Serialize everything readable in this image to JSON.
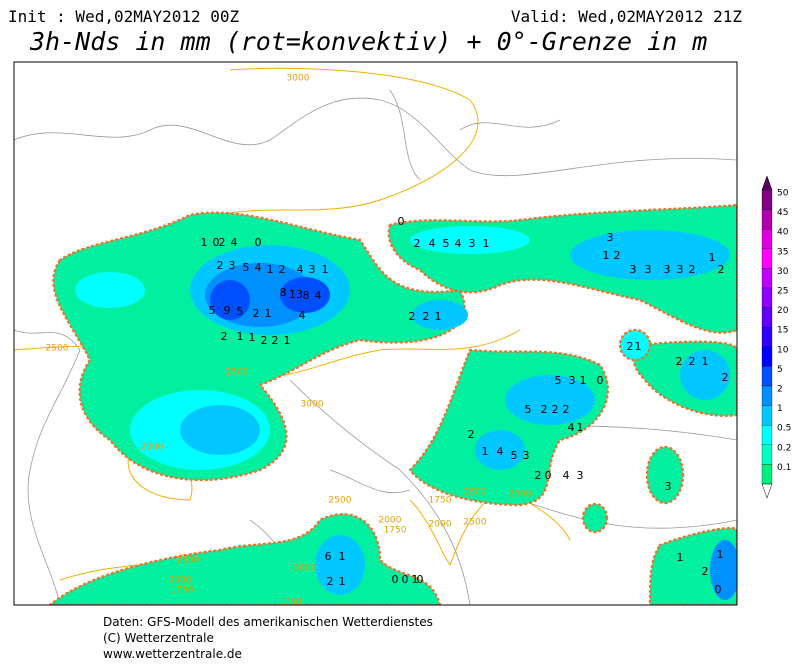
{
  "header": {
    "init": "Init : Wed,02MAY2012 00Z",
    "valid": "Valid: Wed,02MAY2012 21Z",
    "title": "3h-Nds in mm (rot=konvektiv) + 0°-Grenze in m"
  },
  "legend": [
    {
      "label": "50",
      "color": "#800080"
    },
    {
      "label": "45",
      "color": "#b000b0"
    },
    {
      "label": "40",
      "color": "#e000e0"
    },
    {
      "label": "35",
      "color": "#ff00ff"
    },
    {
      "label": "30",
      "color": "#c000ff"
    },
    {
      "label": "25",
      "color": "#9000ff"
    },
    {
      "label": "20",
      "color": "#6000ff"
    },
    {
      "label": "15",
      "color": "#3000ff"
    },
    {
      "label": "10",
      "color": "#0000ff"
    },
    {
      "label": "5",
      "color": "#0050ff"
    },
    {
      "label": "2",
      "color": "#0090ff"
    },
    {
      "label": "1",
      "color": "#00c8ff"
    },
    {
      "label": "0.5",
      "color": "#00ffff"
    },
    {
      "label": "0.2",
      "color": "#00ffc0"
    },
    {
      "label": "0.1",
      "color": "#00f080"
    }
  ],
  "contour_labels": [
    "3000",
    "2500",
    "2500",
    "3000",
    "2000",
    "2500",
    "2000",
    "2500",
    "2000",
    "1750",
    "2000",
    "2500",
    "1750",
    "2500",
    "2000",
    "1750",
    "2000",
    "1750"
  ],
  "precip_labels": [
    "0",
    "1",
    "2",
    "4",
    "0",
    "2",
    "3",
    "5",
    "4",
    "1",
    "2",
    "4",
    "3",
    "1",
    "8",
    "13",
    "8",
    "4",
    "5",
    "9",
    "5",
    "2",
    "1",
    "4",
    "2",
    "1",
    "1",
    "2",
    "2",
    "1",
    "0",
    "2",
    "4",
    "5",
    "4",
    "3",
    "1",
    "2",
    "2",
    "1",
    "1",
    "2",
    "3",
    "3",
    "3",
    "3",
    "2",
    "1",
    "2",
    "3",
    "5",
    "3",
    "1",
    "0",
    "5",
    "2",
    "2",
    "2",
    "4",
    "1",
    "2",
    "1",
    "4",
    "5",
    "3",
    "2",
    "0",
    "4",
    "3",
    "2",
    "1",
    "2",
    "2",
    "1",
    "2",
    "6",
    "1",
    "2",
    "1",
    "0",
    "0",
    "1",
    "0",
    "3",
    "1",
    "2",
    "1",
    "0"
  ],
  "footer": [
    "Daten: GFS-Modell des amerikanischen Wetterdienstes",
    "(C) Wetterzentrale",
    "www.wetterzentrale.de"
  ]
}
